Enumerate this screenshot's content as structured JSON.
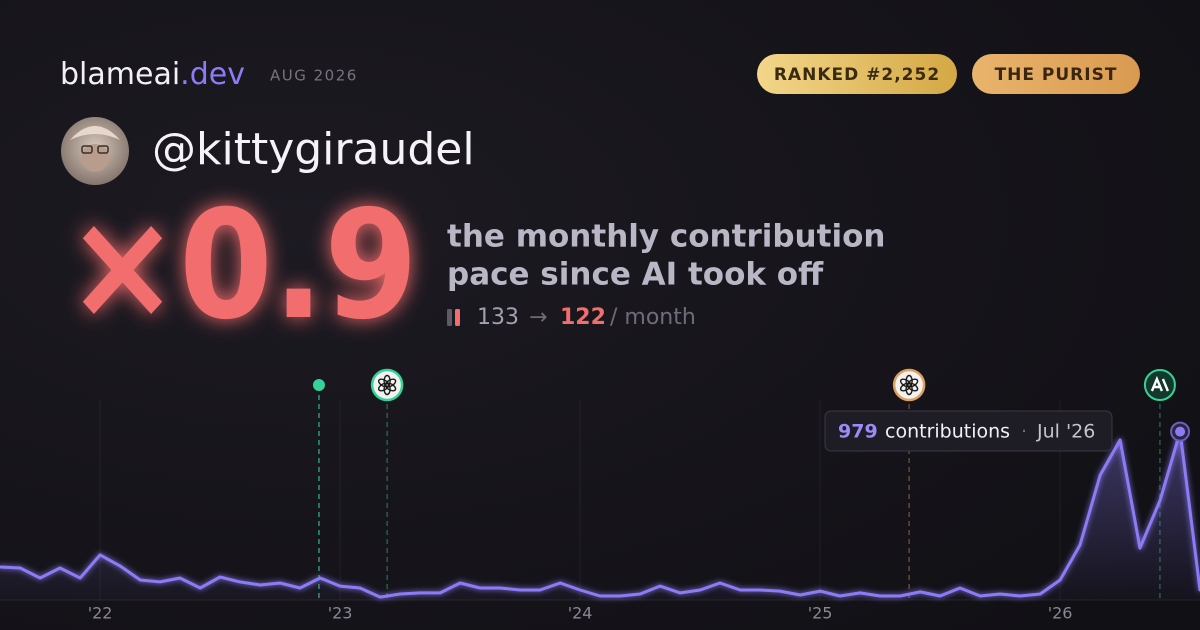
{
  "header": {
    "brand": "blameai",
    "brand_tld": ".dev",
    "date": "AUG 2026",
    "badges": [
      "RANKED #2,252",
      "THE PURIST"
    ]
  },
  "profile": {
    "username": "@kittygiraudel"
  },
  "headline": {
    "multiplier": "×0.9",
    "description": [
      "the monthly contribution",
      "pace since AI took off"
    ],
    "before": 133,
    "arrow": "→",
    "after": 122,
    "unit": "/ month"
  },
  "tooltip": {
    "value": 979,
    "label": "contributions",
    "separator": "·",
    "date": "Jul '26"
  },
  "chart_data": {
    "type": "line",
    "x": [
      2021.583,
      2021.667,
      2021.75,
      2021.833,
      2021.917,
      2022,
      2022.083,
      2022.167,
      2022.25,
      2022.333,
      2022.417,
      2022.5,
      2022.583,
      2022.667,
      2022.75,
      2022.833,
      2022.917,
      2023,
      2023.083,
      2023.167,
      2023.25,
      2023.333,
      2023.417,
      2023.5,
      2023.583,
      2023.667,
      2023.75,
      2023.833,
      2023.917,
      2024,
      2024.083,
      2024.167,
      2024.25,
      2024.333,
      2024.417,
      2024.5,
      2024.583,
      2024.667,
      2024.75,
      2024.833,
      2024.917,
      2025,
      2025.083,
      2025.167,
      2025.25,
      2025.333,
      2025.417,
      2025.5,
      2025.583,
      2025.667,
      2025.75,
      2025.833,
      2025.917,
      2026,
      2026.083,
      2026.167,
      2026.25,
      2026.333,
      2026.417,
      2026.5,
      2026.583
    ],
    "series": [
      {
        "color": "#8b7cf6",
        "values": [
          192,
          186,
          128,
          186,
          128,
          262,
          198,
          116,
          105,
          128,
          70,
          134,
          105,
          87,
          99,
          70,
          128,
          81,
          70,
          17,
          35,
          41,
          41,
          99,
          70,
          70,
          58,
          58,
          99,
          58,
          23,
          23,
          35,
          81,
          41,
          58,
          99,
          58,
          58,
          52,
          29,
          52,
          23,
          41,
          23,
          23,
          47,
          23,
          70,
          23,
          35,
          23,
          35,
          116,
          320,
          727,
          930,
          302,
          582,
          979,
          58
        ]
      }
    ],
    "xlim": [
      2021.583,
      2026.583
    ],
    "ylim": [
      0,
      1000
    ],
    "xticks": [
      {
        "value": 2022,
        "label": "'22"
      },
      {
        "value": 2023,
        "label": "'23"
      },
      {
        "value": 2024,
        "label": "'24"
      },
      {
        "value": 2025,
        "label": "'25"
      },
      {
        "value": 2026,
        "label": "'26"
      }
    ],
    "grid": true,
    "event_x": [
      2022.912,
      2023.196,
      2025.371,
      2026.416
    ],
    "event_colors": [
      "#34d399",
      "#34d399",
      "#e0a060",
      "#34d399"
    ]
  }
}
